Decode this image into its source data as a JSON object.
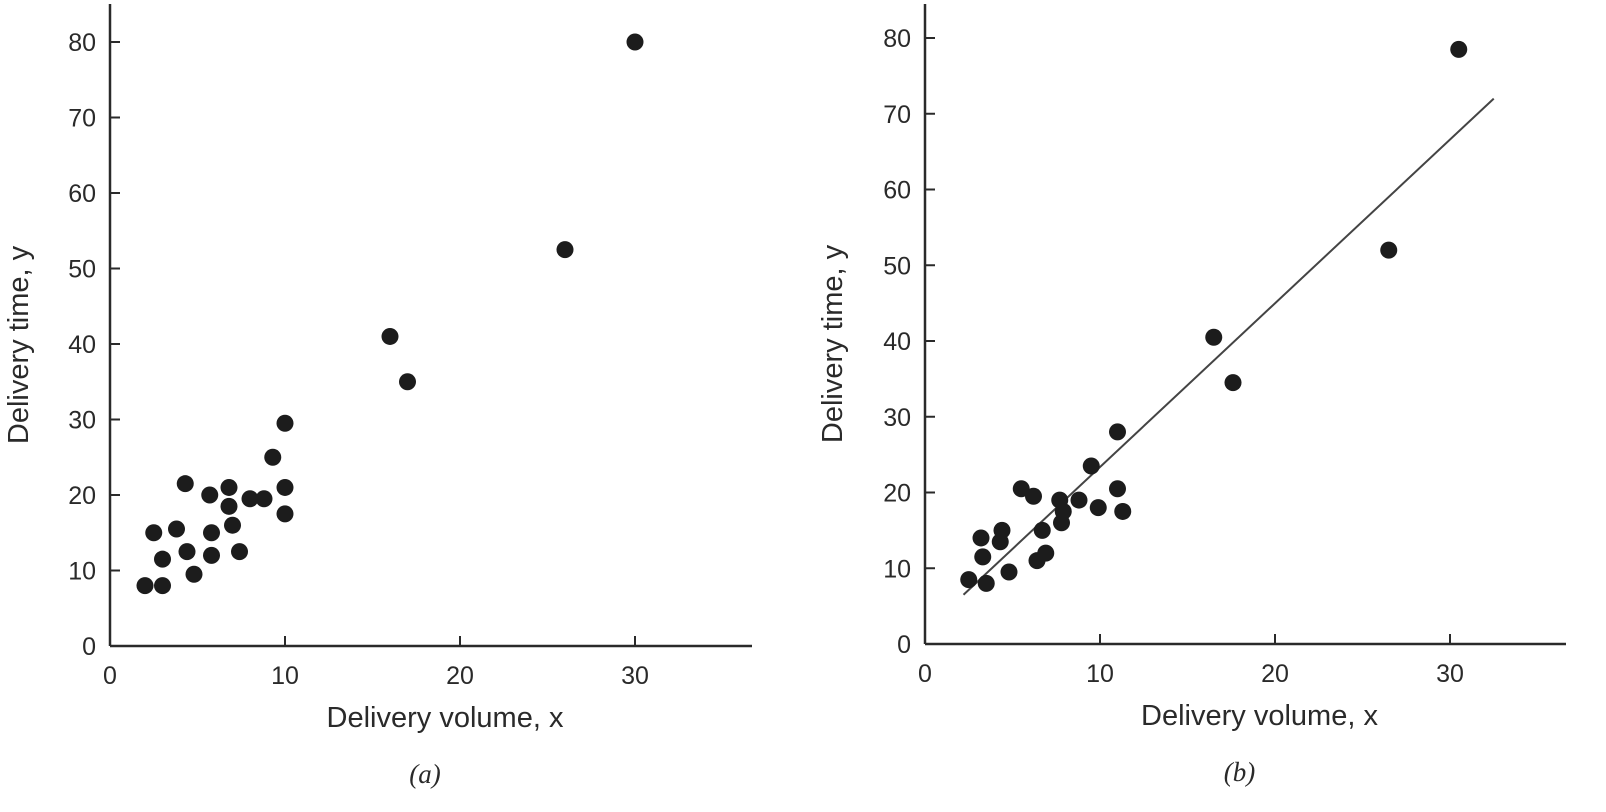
{
  "chart_data": [
    {
      "type": "scatter",
      "subtitle": "(a)",
      "xlabel": "Delivery volume, x",
      "ylabel": "Delivery time, y",
      "xlim": [
        0,
        36
      ],
      "ylim": [
        0,
        85
      ],
      "xticks": [
        "0",
        "10",
        "20",
        "30"
      ],
      "yticks": [
        "0",
        "10",
        "20",
        "30",
        "40",
        "50",
        "60",
        "70",
        "80"
      ],
      "grid": false,
      "points": [
        {
          "x": 2,
          "y": 8
        },
        {
          "x": 3,
          "y": 8
        },
        {
          "x": 2.5,
          "y": 15
        },
        {
          "x": 3,
          "y": 11.5
        },
        {
          "x": 3.8,
          "y": 15.5
        },
        {
          "x": 4.4,
          "y": 12.5
        },
        {
          "x": 4.8,
          "y": 9.5
        },
        {
          "x": 4.3,
          "y": 21.5
        },
        {
          "x": 5.7,
          "y": 20
        },
        {
          "x": 5.8,
          "y": 15
        },
        {
          "x": 5.8,
          "y": 12
        },
        {
          "x": 6.8,
          "y": 21
        },
        {
          "x": 6.8,
          "y": 18.5
        },
        {
          "x": 7,
          "y": 16
        },
        {
          "x": 7.4,
          "y": 12.5
        },
        {
          "x": 8,
          "y": 19.5
        },
        {
          "x": 8.8,
          "y": 19.5
        },
        {
          "x": 9.3,
          "y": 25
        },
        {
          "x": 10,
          "y": 29.5
        },
        {
          "x": 10,
          "y": 21
        },
        {
          "x": 10,
          "y": 17.5
        },
        {
          "x": 16,
          "y": 41
        },
        {
          "x": 17,
          "y": 35
        },
        {
          "x": 26,
          "y": 52.5
        },
        {
          "x": 30,
          "y": 80
        }
      ]
    },
    {
      "type": "scatter",
      "subtitle": "(b)",
      "xlabel": "Delivery volume, x",
      "ylabel": "Delivery time, y",
      "xlim": [
        0,
        36
      ],
      "ylim": [
        0,
        85
      ],
      "xticks": [
        "0",
        "10",
        "20",
        "30"
      ],
      "yticks": [
        "0",
        "10",
        "20",
        "30",
        "40",
        "50",
        "60",
        "70",
        "80"
      ],
      "grid": false,
      "points": [
        {
          "x": 2.5,
          "y": 8.5
        },
        {
          "x": 3.5,
          "y": 8
        },
        {
          "x": 3.2,
          "y": 14
        },
        {
          "x": 3.3,
          "y": 11.5
        },
        {
          "x": 4.3,
          "y": 13.5
        },
        {
          "x": 4.4,
          "y": 15
        },
        {
          "x": 4.8,
          "y": 9.5
        },
        {
          "x": 5.5,
          "y": 20.5
        },
        {
          "x": 6.2,
          "y": 19.5
        },
        {
          "x": 6.4,
          "y": 11
        },
        {
          "x": 6.7,
          "y": 15
        },
        {
          "x": 6.9,
          "y": 12
        },
        {
          "x": 7.7,
          "y": 19
        },
        {
          "x": 7.8,
          "y": 16
        },
        {
          "x": 7.9,
          "y": 17.5
        },
        {
          "x": 8.8,
          "y": 19
        },
        {
          "x": 9.5,
          "y": 23.5
        },
        {
          "x": 9.9,
          "y": 18
        },
        {
          "x": 11,
          "y": 28
        },
        {
          "x": 11,
          "y": 20.5
        },
        {
          "x": 11.3,
          "y": 17.5
        },
        {
          "x": 16.5,
          "y": 40.5
        },
        {
          "x": 17.6,
          "y": 34.5
        },
        {
          "x": 26.5,
          "y": 52
        },
        {
          "x": 30.5,
          "y": 78.5
        }
      ],
      "fit_line": {
        "x": [
          2.2,
          32.5
        ],
        "y": [
          6.5,
          72
        ]
      }
    }
  ]
}
